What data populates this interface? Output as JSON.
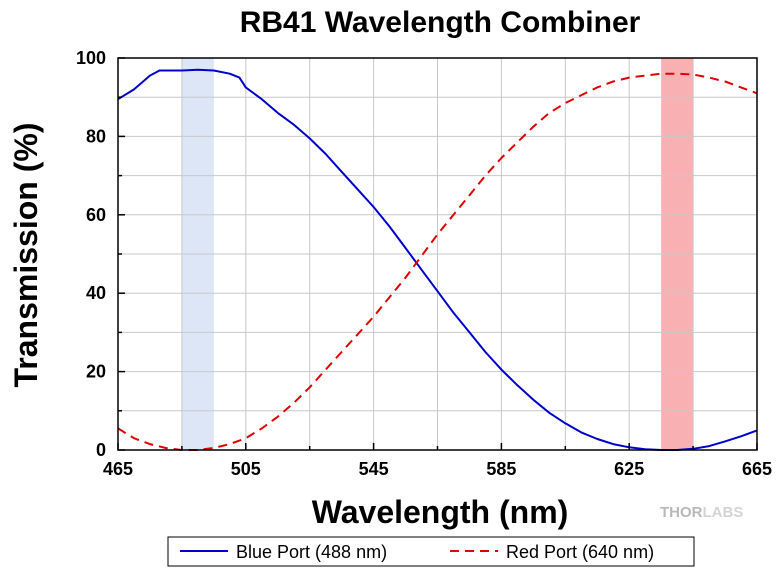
{
  "chart_data": {
    "type": "line",
    "title": "RB41 Wavelength Combiner",
    "xlabel": "Wavelength (nm)",
    "ylabel": "Transmission (%)",
    "xlim": [
      465,
      665
    ],
    "ylim": [
      0,
      100
    ],
    "xticks": [
      465,
      505,
      545,
      585,
      625,
      665
    ],
    "yticks": [
      0,
      20,
      40,
      60,
      80,
      100
    ],
    "grid": true,
    "legend_position": "bottom",
    "highlight_bands": [
      {
        "x": [
          485,
          495
        ],
        "color": "#dce6f7"
      },
      {
        "x": [
          635,
          645
        ],
        "color": "#f9b0b3"
      }
    ],
    "series": [
      {
        "name": "Blue Port (488 nm)",
        "color": "#0000cc",
        "style": "solid",
        "x": [
          465,
          470,
          475,
          478,
          480,
          485,
          490,
          495,
          500,
          503,
          505,
          510,
          515,
          520,
          525,
          530,
          535,
          540,
          545,
          550,
          555,
          560,
          565,
          570,
          575,
          580,
          585,
          590,
          595,
          600,
          605,
          610,
          615,
          620,
          625,
          630,
          635,
          640,
          645,
          650,
          655,
          660,
          665
        ],
        "y": [
          89.5,
          92,
          95.5,
          96.8,
          96.8,
          96.8,
          97,
          96.8,
          96,
          95,
          92.5,
          89.5,
          86,
          83,
          79.5,
          75.5,
          71,
          66.5,
          62,
          57,
          51.5,
          46,
          40.5,
          35,
          30,
          25,
          20.5,
          16.5,
          12.8,
          9.5,
          6.8,
          4.5,
          2.8,
          1.5,
          0.7,
          0.2,
          0,
          0,
          0.3,
          1,
          2.2,
          3.5,
          5
        ]
      },
      {
        "name": "Red Port (640 nm)",
        "color": "#e00000",
        "style": "dashed",
        "x": [
          465,
          470,
          475,
          480,
          485,
          490,
          495,
          500,
          505,
          510,
          515,
          520,
          525,
          530,
          535,
          540,
          545,
          550,
          555,
          560,
          565,
          570,
          575,
          580,
          585,
          590,
          595,
          600,
          605,
          610,
          615,
          620,
          625,
          630,
          635,
          640,
          645,
          650,
          655,
          660,
          665
        ],
        "y": [
          5.5,
          3,
          1.5,
          0.5,
          0,
          0,
          0.5,
          1.5,
          3,
          5.5,
          8.5,
          12,
          16,
          20.5,
          25,
          29.5,
          34,
          39,
          44,
          49.5,
          55,
          60,
          65,
          70,
          74.5,
          78.5,
          82.5,
          86,
          88.5,
          90.5,
          92.5,
          94,
          95,
          95.5,
          96,
          96,
          95.8,
          95,
          94,
          92.5,
          91
        ]
      }
    ]
  },
  "logo": {
    "part1": "THOR",
    "part2": "LABS"
  }
}
